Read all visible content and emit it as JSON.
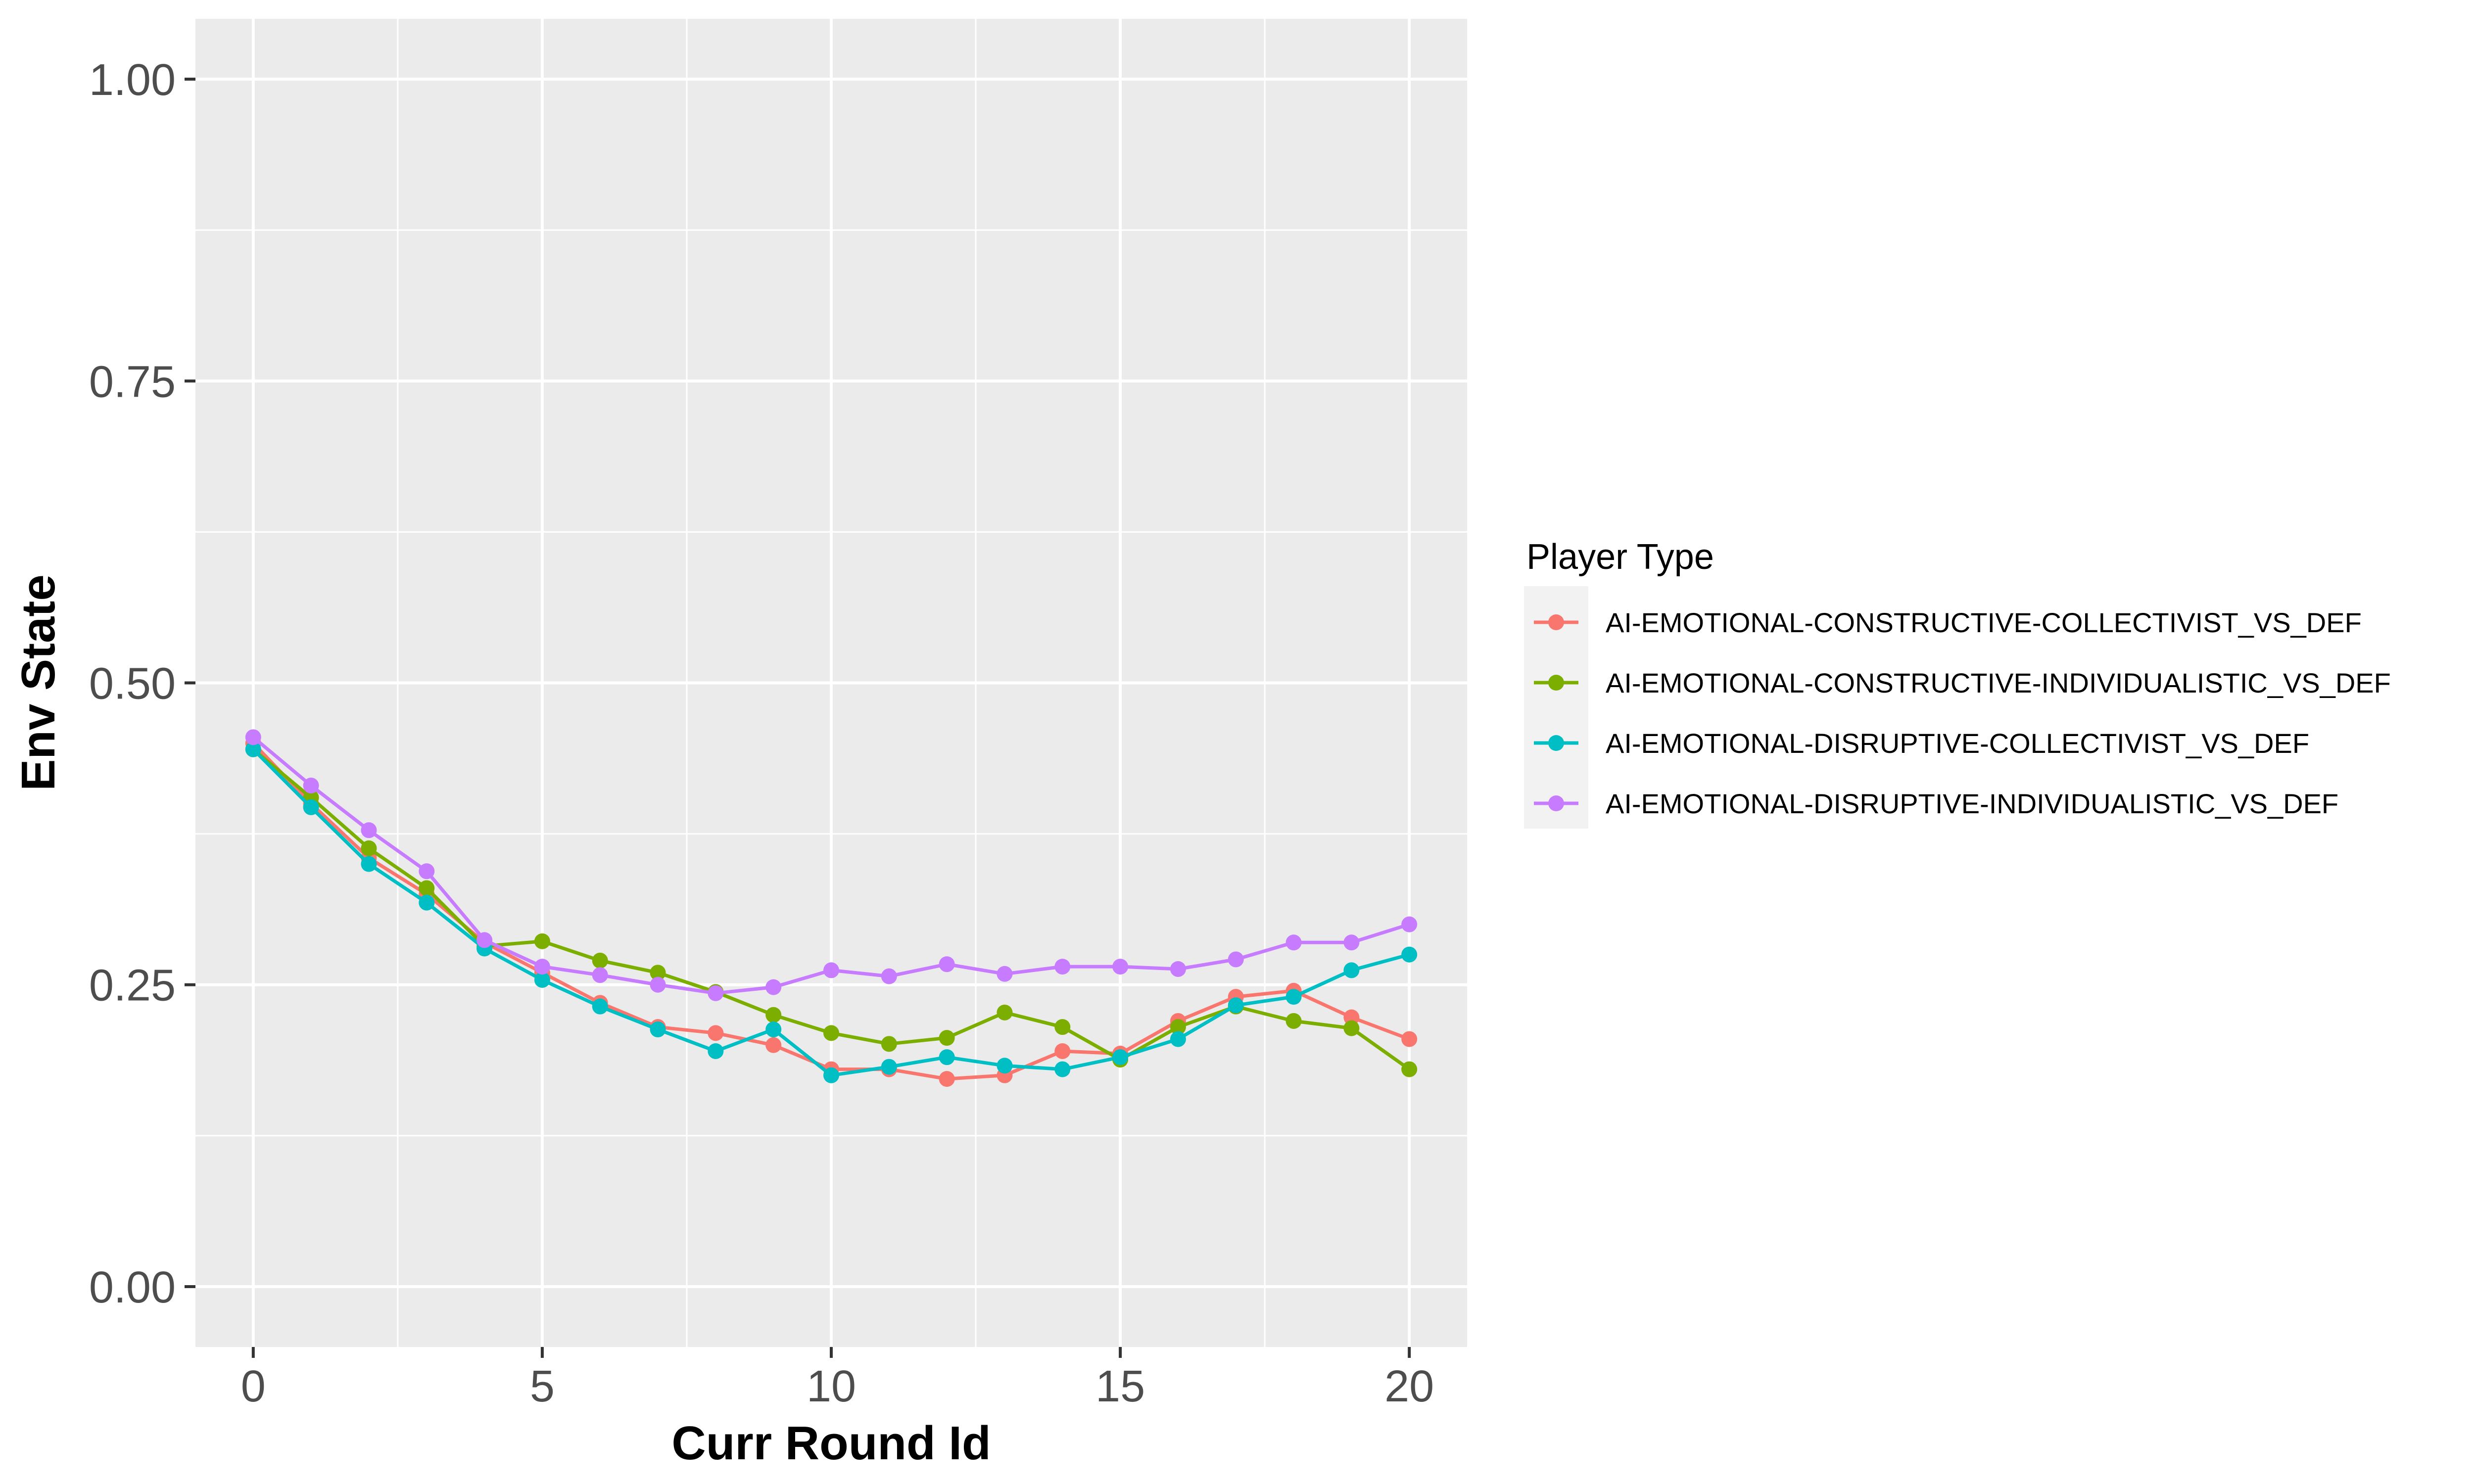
{
  "chart_data": {
    "type": "line",
    "title": "",
    "xlabel": "Curr Round Id",
    "ylabel": "Env State",
    "xlim": [
      -1,
      21
    ],
    "ylim": [
      -0.05,
      1.05
    ],
    "x_ticks": [
      0,
      5,
      10,
      15,
      20
    ],
    "x_tick_labels": [
      "0",
      "5",
      "10",
      "15",
      "20"
    ],
    "y_ticks": [
      0,
      0.25,
      0.5,
      0.75,
      1
    ],
    "y_tick_labels": [
      "0.00",
      "0.25",
      "0.50",
      "0.75",
      "1.00"
    ],
    "grid": true,
    "legend_title": "Player Type",
    "legend_position": "right",
    "x": [
      0,
      1,
      2,
      3,
      4,
      5,
      6,
      7,
      8,
      9,
      10,
      11,
      12,
      13,
      14,
      15,
      16,
      17,
      18,
      19,
      20
    ],
    "series": [
      {
        "name": "AI-EMOTIONAL-CONSTRUCTIVE-COLLECTIVIST_VS_DEF",
        "color": "#F8766D",
        "values": [
          0.45,
          0.4,
          0.355,
          0.325,
          0.285,
          0.26,
          0.235,
          0.215,
          0.21,
          0.2,
          0.18,
          0.18,
          0.172,
          0.175,
          0.195,
          0.193,
          0.22,
          0.24,
          0.245,
          0.223,
          0.205
        ]
      },
      {
        "name": "AI-EMOTIONAL-CONSTRUCTIVE-INDIVIDUALISTIC_VS_DEF",
        "color": "#7CAE00",
        "values": [
          0.445,
          0.405,
          0.363,
          0.33,
          0.282,
          0.286,
          0.27,
          0.26,
          0.244,
          0.225,
          0.21,
          0.201,
          0.206,
          0.227,
          0.215,
          0.188,
          0.215,
          0.232,
          0.22,
          0.214,
          0.18
        ]
      },
      {
        "name": "AI-EMOTIONAL-DISRUPTIVE-COLLECTIVIST_VS_DEF",
        "color": "#00BFC4",
        "values": [
          0.445,
          0.397,
          0.35,
          0.318,
          0.28,
          0.254,
          0.232,
          0.213,
          0.195,
          0.213,
          0.175,
          0.182,
          0.19,
          0.183,
          0.18,
          0.19,
          0.205,
          0.233,
          0.24,
          0.262,
          0.275
        ]
      },
      {
        "name": "AI-EMOTIONAL-DISRUPTIVE-INDIVIDUALISTIC_VS_DEF",
        "color": "#C77CFF",
        "values": [
          0.455,
          0.415,
          0.378,
          0.344,
          0.287,
          0.265,
          0.258,
          0.25,
          0.243,
          0.248,
          0.262,
          0.257,
          0.267,
          0.259,
          0.265,
          0.265,
          0.263,
          0.271,
          0.285,
          0.285,
          0.3
        ]
      }
    ]
  }
}
